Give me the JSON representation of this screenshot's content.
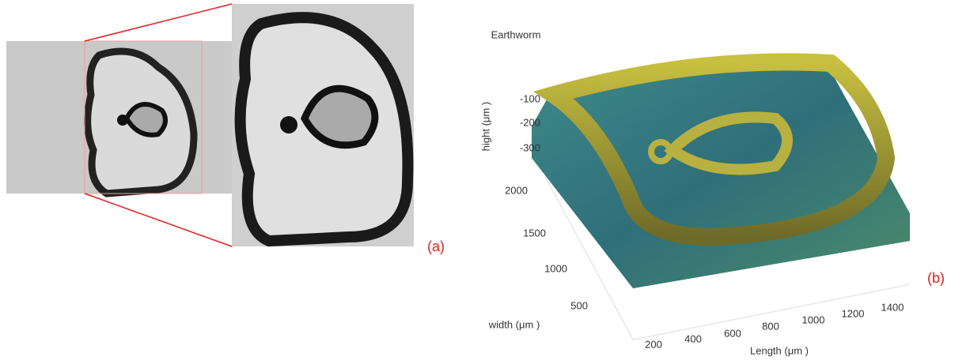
{
  "panel_a": {
    "label": "(a)"
  },
  "panel_b": {
    "title": "Earthworm",
    "label": "(b)",
    "z_axis": {
      "label": "hight (μm )",
      "ticks": [
        -100,
        -200,
        -300
      ]
    },
    "width_axis": {
      "label": "width (μm )",
      "ticks": [
        2000,
        1500,
        1000,
        500
      ]
    },
    "length_axis": {
      "label": "Length (μm )",
      "ticks": [
        200,
        400,
        600,
        800,
        1000,
        1200,
        1400
      ]
    }
  }
}
